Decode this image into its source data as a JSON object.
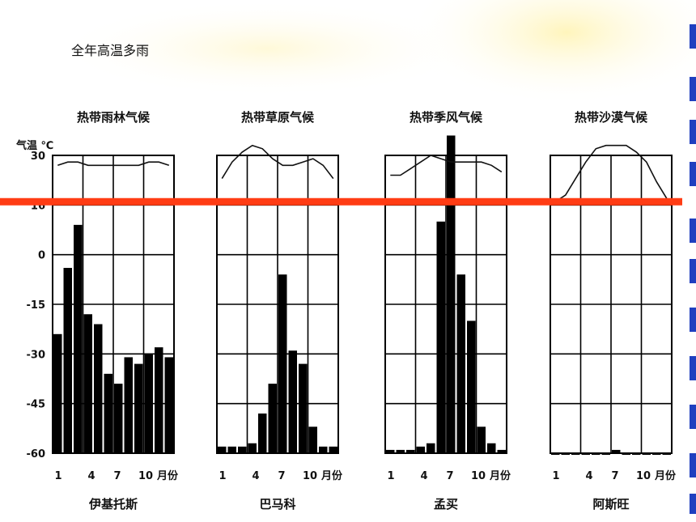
{
  "caption": "全年高温多雨",
  "colors": {
    "highlight_line": "#ff3c14",
    "bars": "#000000",
    "grid": "#000000",
    "side_marks": "#1f3fbf"
  },
  "chart_data": {
    "type": "bar",
    "shared_y_axis": {
      "label": "气温 ℃",
      "ticks": [
        "30",
        "16",
        "0",
        "-15",
        "-30",
        "-45",
        "-60"
      ]
    },
    "highlight_line_at": 16,
    "panels": [
      {
        "title": "热带雨林气候",
        "station": "伊基托斯",
        "x_ticks": [
          "1",
          "4",
          "7",
          "10",
          "月份"
        ],
        "temperature": [
          27,
          28,
          28,
          27,
          27,
          27,
          27,
          27,
          27,
          28,
          28,
          27
        ],
        "precip_level": [
          -24,
          -4,
          9,
          -18,
          -21,
          -36,
          -39,
          -31,
          -33,
          -30,
          -28,
          -31
        ]
      },
      {
        "title": "热带草原气候",
        "station": "巴马科",
        "x_ticks": [
          "1",
          "4",
          "7",
          "10",
          "月份"
        ],
        "temperature": [
          23,
          28,
          31,
          33,
          32,
          29,
          27,
          27,
          28,
          29,
          27,
          23
        ],
        "precip_level": [
          -58,
          -58,
          -58,
          -57,
          -48,
          -39,
          -6,
          -29,
          -33,
          -52,
          -58,
          -58
        ]
      },
      {
        "title": "热带季风气候",
        "station": "孟买",
        "x_ticks": [
          "1",
          "4",
          "7",
          "10",
          "月份"
        ],
        "temperature": [
          24,
          24,
          26,
          28,
          30,
          29,
          28,
          28,
          28,
          28,
          27,
          25
        ],
        "precip_level": [
          -59,
          -59,
          -59,
          -58,
          -57,
          10,
          36,
          -6,
          -20,
          -52,
          -57,
          -59
        ]
      },
      {
        "title": "热带沙漠气候",
        "station": "阿斯旺",
        "x_ticks": [
          "1",
          "4",
          "7",
          "10",
          "月份"
        ],
        "temperature": [
          16,
          18,
          23,
          28,
          32,
          33,
          33,
          33,
          31,
          28,
          22,
          17
        ],
        "precip_level": [
          -60,
          -60,
          -60,
          -60,
          -60,
          -60,
          -59,
          -60,
          -60,
          -60,
          -60,
          -60
        ]
      }
    ]
  }
}
